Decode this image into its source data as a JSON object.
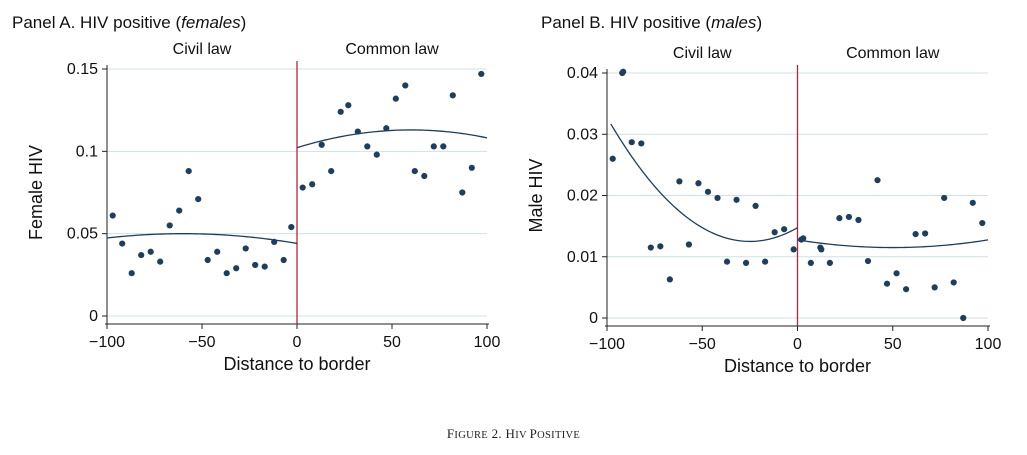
{
  "caption": {
    "prefix": "Figure 2.",
    "title": "HIV Positive"
  },
  "chart_data": [
    {
      "type": "scatter",
      "title_main": "Panel A. HIV positive (",
      "title_em": "females",
      "title_end": ")",
      "xlabel": "Distance to border",
      "ylabel": "Female HIV",
      "xlim": [
        -100,
        100
      ],
      "ylim": [
        0,
        0.15
      ],
      "xticks": [
        -100,
        -50,
        0,
        50,
        100
      ],
      "xtick_labels": [
        "−100",
        "−50",
        "0",
        "50",
        "100"
      ],
      "yticks": [
        0,
        0.05,
        0.1,
        0.15
      ],
      "ytick_labels": [
        "0",
        "0.05",
        "0.1",
        "0.15"
      ],
      "grid": true,
      "cutoff": 0,
      "region_labels": [
        "Civil law",
        "Common law"
      ],
      "colors": {
        "points": "#1f3d5c",
        "fit": "#1f3d5c",
        "cutoff": "#b0283a",
        "grid": "#cfe0e6"
      },
      "points": [
        [
          -97,
          0.061
        ],
        [
          -92,
          0.044
        ],
        [
          -87,
          0.026
        ],
        [
          -82,
          0.037
        ],
        [
          -77,
          0.039
        ],
        [
          -72,
          0.033
        ],
        [
          -67,
          0.055
        ],
        [
          -62,
          0.064
        ],
        [
          -57,
          0.088
        ],
        [
          -52,
          0.071
        ],
        [
          -47,
          0.034
        ],
        [
          -42,
          0.039
        ],
        [
          -37,
          0.026
        ],
        [
          -32,
          0.029
        ],
        [
          -27,
          0.041
        ],
        [
          -22,
          0.031
        ],
        [
          -17,
          0.03
        ],
        [
          -12,
          0.045
        ],
        [
          -7,
          0.034
        ],
        [
          -3,
          0.054
        ],
        [
          3,
          0.078
        ],
        [
          8,
          0.08
        ],
        [
          13,
          0.104
        ],
        [
          18,
          0.088
        ],
        [
          23,
          0.124
        ],
        [
          27,
          0.128
        ],
        [
          32,
          0.112
        ],
        [
          37,
          0.103
        ],
        [
          42,
          0.098
        ],
        [
          47,
          0.114
        ],
        [
          52,
          0.132
        ],
        [
          57,
          0.14
        ],
        [
          62,
          0.088
        ],
        [
          67,
          0.085
        ],
        [
          72,
          0.103
        ],
        [
          77,
          0.103
        ],
        [
          82,
          0.134
        ],
        [
          87,
          0.075
        ],
        [
          92,
          0.09
        ],
        [
          97,
          0.147
        ]
      ],
      "fit_left": {
        "x0": -60,
        "y0": 0.05,
        "a": -1.65e-06,
        "range": [
          -100,
          0
        ]
      },
      "fit_right": {
        "x0": 60,
        "y0": 0.113,
        "a": -3e-06,
        "range": [
          0,
          100
        ]
      }
    },
    {
      "type": "scatter",
      "title_main": "Panel B. HIV positive (",
      "title_em": "males",
      "title_end": ")",
      "xlabel": "Distance to border",
      "ylabel": "Male HIV",
      "xlim": [
        -100,
        100
      ],
      "ylim": [
        0,
        0.04
      ],
      "xticks": [
        -100,
        -50,
        0,
        50,
        100
      ],
      "xtick_labels": [
        "−100",
        "−50",
        "0",
        "50",
        "100"
      ],
      "yticks": [
        0,
        0.01,
        0.02,
        0.03,
        0.04
      ],
      "ytick_labels": [
        "0",
        "0.01",
        "0.02",
        "0.03",
        "0.04"
      ],
      "grid": true,
      "cutoff": 0,
      "region_labels": [
        "Civil law",
        "Common law"
      ],
      "colors": {
        "points": "#1f3d5c",
        "fit": "#1f3d5c",
        "cutoff": "#b0283a",
        "grid": "#cfe0e6"
      },
      "points": [
        [
          -97,
          0.026
        ],
        [
          -92,
          0.04
        ],
        [
          -91.5,
          0.0402
        ],
        [
          -87,
          0.0287
        ],
        [
          -82,
          0.0285
        ],
        [
          -77,
          0.0115
        ],
        [
          -72,
          0.0117
        ],
        [
          -67,
          0.0063
        ],
        [
          -62,
          0.0223
        ],
        [
          -57,
          0.012
        ],
        [
          -52,
          0.022
        ],
        [
          -47,
          0.0206
        ],
        [
          -42,
          0.0196
        ],
        [
          -37,
          0.0092
        ],
        [
          -32,
          0.0193
        ],
        [
          -27,
          0.009
        ],
        [
          -22,
          0.0183
        ],
        [
          -17,
          0.0092
        ],
        [
          -12,
          0.014
        ],
        [
          -7,
          0.0145
        ],
        [
          -2,
          0.0112
        ],
        [
          2,
          0.0128
        ],
        [
          3,
          0.013
        ],
        [
          7,
          0.009
        ],
        [
          12,
          0.0115
        ],
        [
          12.5,
          0.0112
        ],
        [
          17,
          0.009
        ],
        [
          22,
          0.0163
        ],
        [
          27,
          0.0165
        ],
        [
          32,
          0.016
        ],
        [
          37,
          0.0093
        ],
        [
          42,
          0.0225
        ],
        [
          47,
          0.0056
        ],
        [
          52,
          0.0073
        ],
        [
          57,
          0.0047
        ],
        [
          62,
          0.0137
        ],
        [
          67,
          0.0138
        ],
        [
          72,
          0.005
        ],
        [
          77,
          0.0196
        ],
        [
          82,
          0.0058
        ],
        [
          87,
          0.0
        ],
        [
          92,
          0.0188
        ],
        [
          97,
          0.0155
        ]
      ],
      "fit_left": {
        "x0": -25,
        "y0": 0.0125,
        "a": 3.6e-06,
        "range": [
          -98,
          0
        ]
      },
      "fit_right": {
        "x0": 50,
        "y0": 0.0115,
        "a": 5e-07,
        "range": [
          0,
          100
        ]
      }
    }
  ]
}
